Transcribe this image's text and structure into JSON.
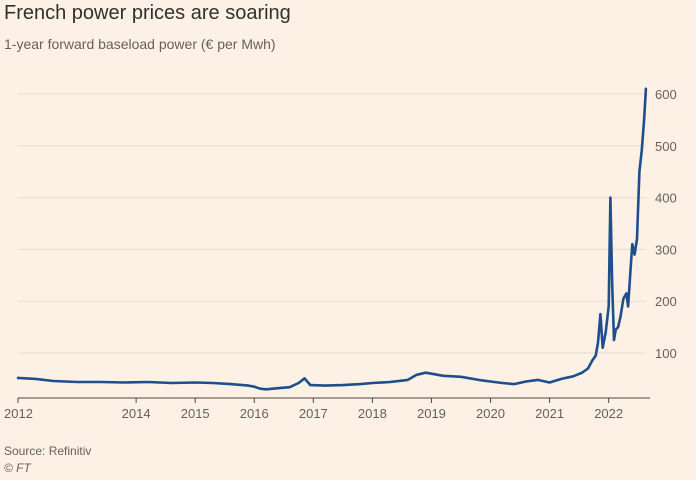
{
  "header": {
    "title": "French power prices are soaring",
    "subtitle": "1-year forward baseload power (€ per Mwh)"
  },
  "footer": {
    "source": "Source: Refinitiv",
    "credit": "© FT"
  },
  "colors": {
    "background": "#fdf1e5",
    "line": "#1e4e8c",
    "grid": "#e8dccf",
    "axis": "#4d4945",
    "text": "#66605c"
  },
  "chart_data": {
    "type": "line",
    "title": "French power prices are soaring",
    "subtitle": "1-year forward baseload power (€ per Mwh)",
    "xlabel": "",
    "ylabel": "",
    "xlim": [
      2012.0,
      2022.7
    ],
    "ylim": [
      0,
      620
    ],
    "x_ticks": [
      {
        "value": 2012,
        "label": "2012"
      },
      {
        "value": 2014,
        "label": "2014"
      },
      {
        "value": 2015,
        "label": "2015"
      },
      {
        "value": 2016,
        "label": "2016"
      },
      {
        "value": 2017,
        "label": "2017"
      },
      {
        "value": 2018,
        "label": "2018"
      },
      {
        "value": 2019,
        "label": "2019"
      },
      {
        "value": 2020,
        "label": "2020"
      },
      {
        "value": 2021,
        "label": "2021"
      },
      {
        "value": 2022,
        "label": "2022"
      }
    ],
    "y_ticks": [
      {
        "value": 100,
        "label": "100"
      },
      {
        "value": 200,
        "label": "200"
      },
      {
        "value": 300,
        "label": "300"
      },
      {
        "value": 400,
        "label": "400"
      },
      {
        "value": 500,
        "label": "500"
      },
      {
        "value": 600,
        "label": "600"
      }
    ],
    "grid": true,
    "legend": "none",
    "series": [
      {
        "name": "",
        "x": [
          2012.0,
          2012.3,
          2012.6,
          2013.0,
          2013.4,
          2013.8,
          2014.2,
          2014.6,
          2015.0,
          2015.3,
          2015.6,
          2015.9,
          2016.0,
          2016.1,
          2016.2,
          2016.4,
          2016.6,
          2016.75,
          2016.85,
          2016.95,
          2017.2,
          2017.5,
          2017.8,
          2018.0,
          2018.3,
          2018.6,
          2018.75,
          2018.9,
          2019.0,
          2019.2,
          2019.5,
          2019.8,
          2020.0,
          2020.2,
          2020.4,
          2020.6,
          2020.8,
          2021.0,
          2021.2,
          2021.4,
          2021.55,
          2021.65,
          2021.72,
          2021.78,
          2021.82,
          2021.86,
          2021.9,
          2021.95,
          2022.0,
          2022.03,
          2022.06,
          2022.09,
          2022.12,
          2022.16,
          2022.2,
          2022.25,
          2022.3,
          2022.33,
          2022.37,
          2022.4,
          2022.44,
          2022.48,
          2022.52,
          2022.56,
          2022.6,
          2022.63
        ],
        "y": [
          52,
          50,
          46,
          44,
          44,
          43,
          44,
          42,
          43,
          42,
          40,
          37,
          35,
          31,
          30,
          32,
          34,
          42,
          51,
          38,
          37,
          38,
          40,
          42,
          44,
          48,
          58,
          62,
          60,
          56,
          54,
          48,
          45,
          42,
          40,
          45,
          48,
          43,
          50,
          55,
          62,
          70,
          85,
          95,
          120,
          175,
          110,
          140,
          190,
          400,
          230,
          125,
          145,
          150,
          170,
          205,
          215,
          190,
          260,
          310,
          290,
          320,
          450,
          490,
          550,
          610
        ]
      }
    ]
  }
}
